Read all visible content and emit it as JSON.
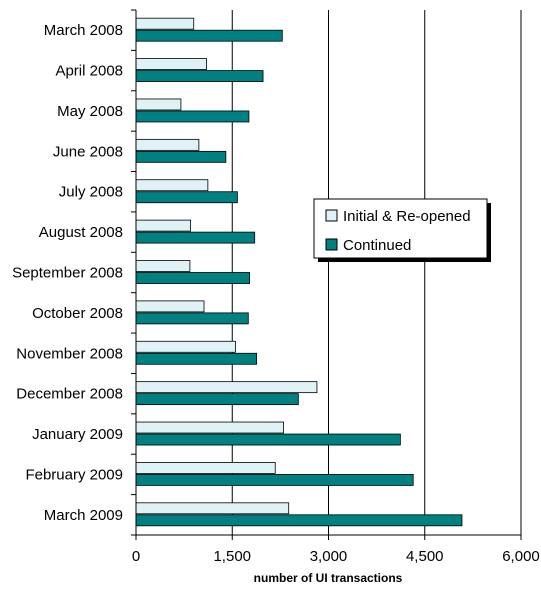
{
  "chart_data": {
    "type": "bar",
    "orientation": "horizontal",
    "categories": [
      "March 2008",
      "April 2008",
      "May 2008",
      "June 2008",
      "July 2008",
      "August 2008",
      "September 2008",
      "October 2008",
      "November 2008",
      "December 2008",
      "January 2009",
      "February 2009",
      "March 2009"
    ],
    "series": [
      {
        "name": "Initial & Re-opened",
        "color": "#dff3f7",
        "values": [
          900,
          1100,
          700,
          980,
          1120,
          850,
          840,
          1060,
          1550,
          2820,
          2300,
          2170,
          2380
        ]
      },
      {
        "name": "Continued",
        "color": "#008080",
        "values": [
          2280,
          1980,
          1760,
          1400,
          1580,
          1850,
          1770,
          1750,
          1880,
          2530,
          4120,
          4320,
          5080
        ]
      }
    ],
    "xlabel": "number of UI transactions",
    "xlim": [
      0,
      6000
    ],
    "xticks": [
      0,
      1500,
      3000,
      4500,
      6000
    ],
    "xtick_labels": [
      "0",
      "1,500",
      "3,000",
      "4,500",
      "6,000"
    ],
    "grid": "vertical",
    "legend": "right"
  }
}
